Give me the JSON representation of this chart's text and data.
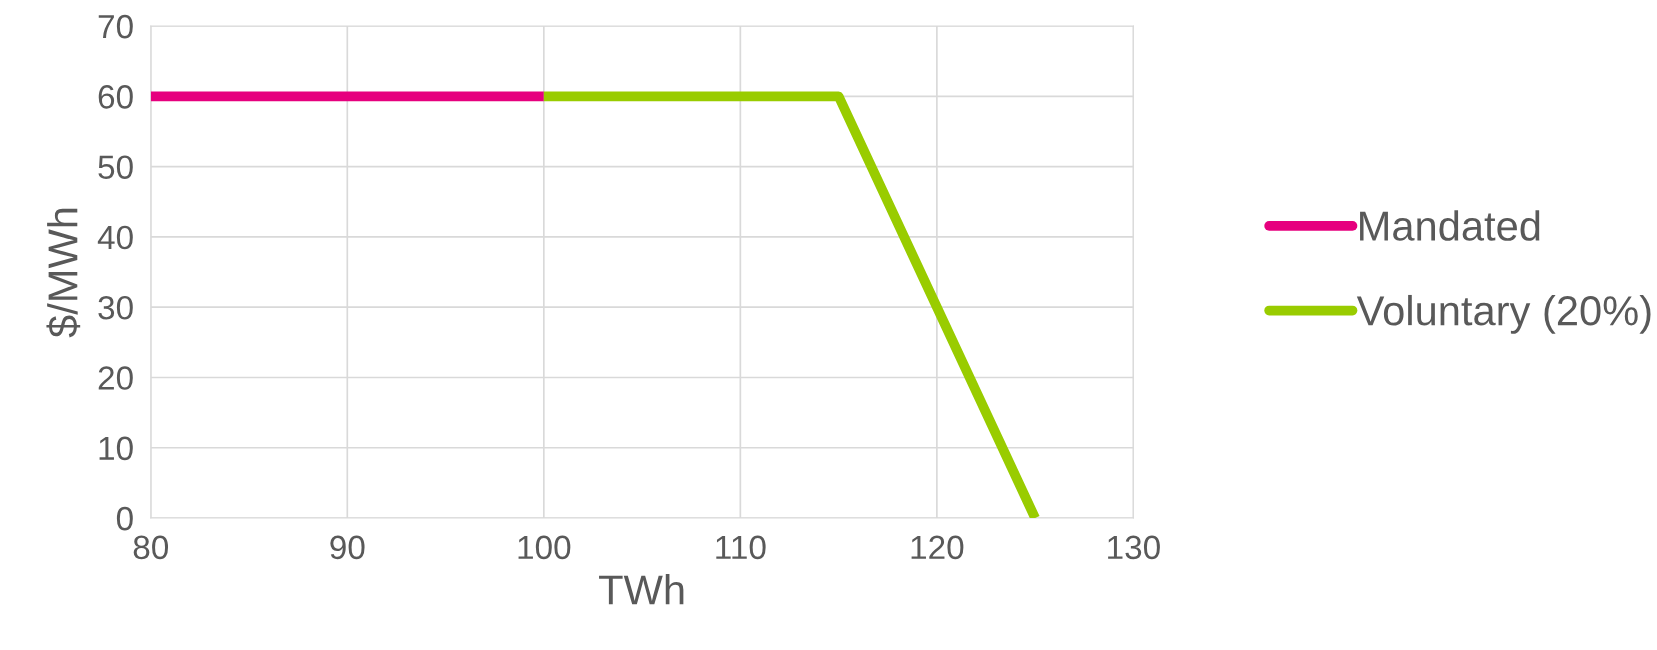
{
  "chart_data": {
    "type": "line",
    "xlabel": "TWh",
    "ylabel": "$/MWh",
    "series": [
      {
        "name": "Mandated",
        "color": "#e6007e",
        "x": [
          80,
          100
        ],
        "values": [
          60,
          60
        ]
      },
      {
        "name": "Voluntary (20%)",
        "color": "#99cc00",
        "x": [
          100,
          115,
          125
        ],
        "values": [
          60,
          60,
          0
        ]
      }
    ],
    "xlim": [
      80,
      130
    ],
    "xticks": [
      80,
      90,
      100,
      110,
      120,
      130
    ],
    "ylim": [
      0,
      70
    ],
    "yticks": [
      0,
      10,
      20,
      30,
      40,
      50,
      60,
      70
    ],
    "grid": true,
    "legend": "right",
    "line_style": "solid",
    "marker": "none"
  }
}
